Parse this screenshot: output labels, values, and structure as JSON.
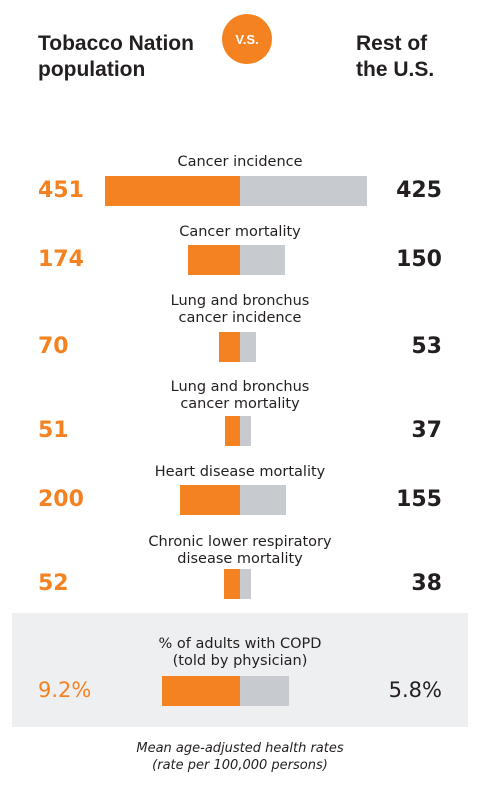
{
  "header": {
    "left_line1": "Tobacco Nation",
    "left_line2": "population",
    "vs": "V.S.",
    "right_line1": "Rest of",
    "right_line2": "the U.S."
  },
  "footnote": {
    "line1": "Mean age-adjusted health rates",
    "line2": "(rate per 100,000 persons)"
  },
  "colors": {
    "tobacco_nation": "#f58220",
    "rest_of_us": "#c7cbd0",
    "highlight_panel": "#eeeff1"
  },
  "chart_data": {
    "type": "bar",
    "orientation": "diverging-horizontal",
    "series": [
      {
        "name": "Tobacco Nation population",
        "values": [
          451,
          174,
          70,
          51,
          200,
          52,
          9.2
        ]
      },
      {
        "name": "Rest of the U.S.",
        "values": [
          425,
          150,
          53,
          37,
          155,
          38,
          5.8
        ]
      }
    ],
    "rows": [
      {
        "label": [
          "Cancer incidence"
        ],
        "left": 451,
        "right": 425,
        "left_text": "451",
        "right_text": "425"
      },
      {
        "label": [
          "Cancer mortality"
        ],
        "left": 174,
        "right": 150,
        "left_text": "174",
        "right_text": "150"
      },
      {
        "label": [
          "Lung and bronchus",
          "cancer incidence"
        ],
        "left": 70,
        "right": 53,
        "left_text": "70",
        "right_text": "53"
      },
      {
        "label": [
          "Lung and bronchus",
          "cancer mortality"
        ],
        "left": 51,
        "right": 37,
        "left_text": "51",
        "right_text": "37"
      },
      {
        "label": [
          "Heart disease mortality"
        ],
        "left": 200,
        "right": 155,
        "left_text": "200",
        "right_text": "155"
      },
      {
        "label": [
          "Chronic lower respiratory",
          "disease mortality"
        ],
        "left": 52,
        "right": 38,
        "left_text": "52",
        "right_text": "38"
      },
      {
        "label": [
          "% of adults with COPD",
          "(told by physician)"
        ],
        "left": 9.2,
        "right": 5.8,
        "left_text": "9.2%",
        "right_text": "5.8%",
        "highlight": true
      }
    ]
  }
}
